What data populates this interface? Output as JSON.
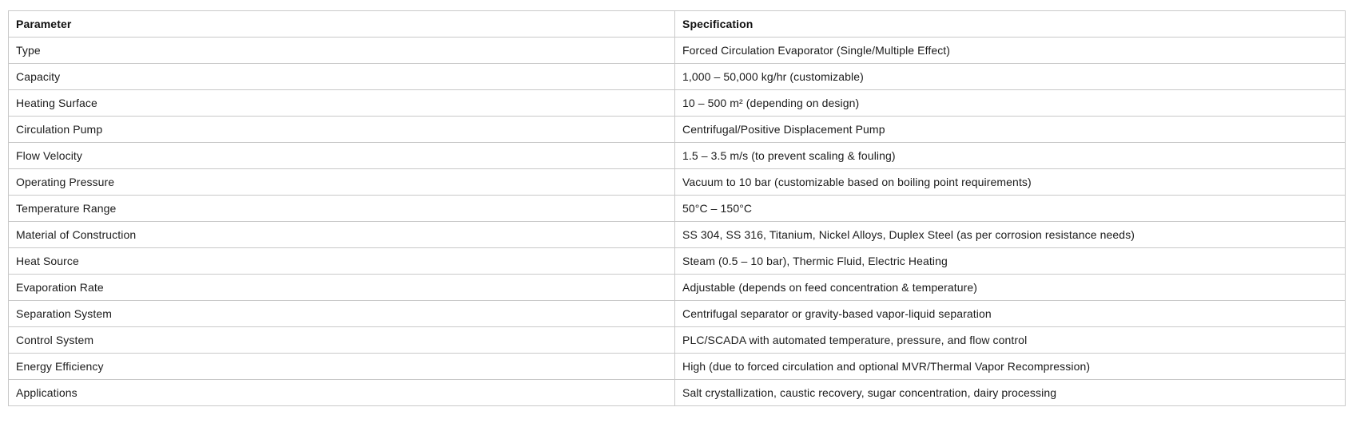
{
  "table": {
    "headers": [
      "Parameter",
      "Specification"
    ],
    "rows": [
      {
        "parameter": "Type",
        "specification": "Forced Circulation Evaporator (Single/Multiple Effect)"
      },
      {
        "parameter": "Capacity",
        "specification": "1,000 – 50,000 kg/hr (customizable)"
      },
      {
        "parameter": "Heating Surface",
        "specification": "10 – 500 m² (depending on design)"
      },
      {
        "parameter": "Circulation Pump",
        "specification": "Centrifugal/Positive Displacement Pump"
      },
      {
        "parameter": "Flow Velocity",
        "specification": "1.5 – 3.5 m/s (to prevent scaling & fouling)"
      },
      {
        "parameter": "Operating Pressure",
        "specification": "Vacuum to 10 bar (customizable based on boiling point requirements)"
      },
      {
        "parameter": "Temperature Range",
        "specification": "50°C – 150°C"
      },
      {
        "parameter": "Material of Construction",
        "specification": "SS 304, SS 316, Titanium, Nickel Alloys, Duplex Steel (as per corrosion resistance needs)"
      },
      {
        "parameter": "Heat Source",
        "specification": "Steam (0.5 – 10 bar), Thermic Fluid, Electric Heating"
      },
      {
        "parameter": "Evaporation Rate",
        "specification": "Adjustable (depends on feed concentration & temperature)"
      },
      {
        "parameter": "Separation System",
        "specification": "Centrifugal separator or gravity-based vapor-liquid separation"
      },
      {
        "parameter": "Control System",
        "specification": "PLC/SCADA with automated temperature, pressure, and flow control"
      },
      {
        "parameter": "Energy Efficiency",
        "specification": "High (due to forced circulation and optional MVR/Thermal Vapor Recompression)"
      },
      {
        "parameter": "Applications",
        "specification": "Salt crystallization, caustic recovery, sugar concentration, dairy processing"
      }
    ],
    "colors": {
      "border": "#c9c9c9",
      "text": "#1b1b1b",
      "header_text": "#111111",
      "background": "#ffffff"
    }
  }
}
